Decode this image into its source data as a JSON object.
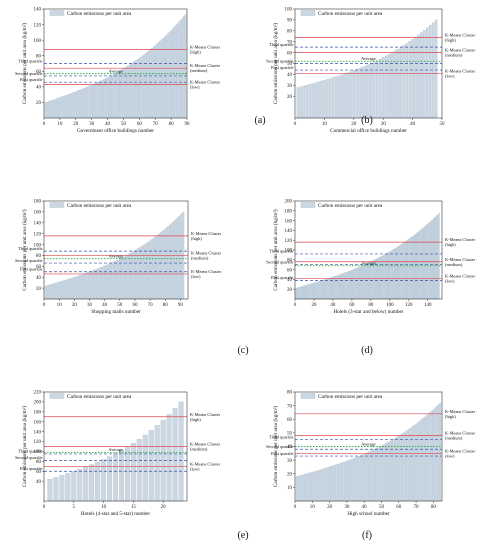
{
  "legend_label": "Carbon emissions per unit area",
  "colors": {
    "bar": "#cbd8e3",
    "bar_edge": "#a8bccd",
    "kmeans_line": "#e0464f",
    "quartile_line": "#3a52a8",
    "average_line": "#27b045"
  },
  "chart_data": [
    {
      "type": "bar",
      "panel_label": "(a)",
      "xlabel": "Government office buildings number",
      "ylabel": "Carbon emissions per unit area (kg/m²)",
      "n": 89,
      "xlim": [
        0,
        90
      ],
      "ylim": [
        0,
        140
      ],
      "xticks": [
        0,
        10,
        20,
        30,
        40,
        50,
        60,
        70,
        80,
        90
      ],
      "yticks": [
        20,
        40,
        60,
        80,
        100,
        120,
        140
      ],
      "values_start": 20,
      "values_end": 133,
      "lines": {
        "kmeans_high": 88,
        "third_quartile": 70,
        "kmeans_medium": 64,
        "average": 57,
        "second_quartile": 54,
        "first_quartile": 46,
        "kmeans_low": 43
      },
      "labels": {
        "kmeans_high": [
          "K-Means Cluster",
          "(high)"
        ],
        "kmeans_medium": [
          "K-Means Cluster",
          "(medium)"
        ],
        "kmeans_low": [
          "K-Means Cluster",
          "(low)"
        ],
        "third_quartile": "Third quartile",
        "second_quartile": "Second quartile",
        "first_quartile": "First quartile",
        "average": "Average"
      }
    },
    {
      "type": "bar",
      "panel_label": "(b)",
      "xlabel": "Commercial office buildings number",
      "ylabel": "Carbon emissions per unit area (kg/m²)",
      "n": 48,
      "xlim": [
        0,
        50
      ],
      "ylim": [
        0,
        100
      ],
      "xticks": [
        0,
        10,
        20,
        30,
        40,
        50
      ],
      "yticks": [
        20,
        30,
        40,
        50,
        60,
        70,
        80,
        90,
        100
      ],
      "values_start": 28,
      "values_end": 90,
      "lines": {
        "kmeans_high": 74,
        "third_quartile": 65,
        "kmeans_medium": 60,
        "average": 52,
        "second_quartile": 50,
        "first_quartile": 44,
        "kmeans_low": 41
      },
      "labels": {
        "kmeans_high": [
          "K-Means Cluster",
          "(high)"
        ],
        "kmeans_medium": [
          "K-Means Cluster",
          "(medium)"
        ],
        "kmeans_low": [
          "K-Means Cluster",
          "(low)"
        ],
        "third_quartile": "Third quartile",
        "second_quartile": "Second quartile",
        "first_quartile": "First quartile",
        "average": "Average"
      }
    },
    {
      "type": "bar",
      "panel_label": "(c)",
      "xlabel": "Shopping malls number",
      "ylabel": "Carbon emissions per unit area (kg/m²)",
      "n": 92,
      "xlim": [
        0,
        95
      ],
      "ylim": [
        0,
        180
      ],
      "xticks": [
        0,
        10,
        20,
        30,
        40,
        50,
        60,
        70,
        80,
        90
      ],
      "yticks": [
        20,
        40,
        60,
        80,
        100,
        120,
        140,
        160,
        180
      ],
      "values_start": 24,
      "values_end": 160,
      "lines": {
        "kmeans_high": 116,
        "third_quartile": 88,
        "kmeans_medium": 80,
        "average": 74,
        "second_quartile": 66,
        "first_quartile": 50,
        "kmeans_low": 46
      },
      "labels": {
        "kmeans_high": [
          "K-Means Cluster",
          "(high)"
        ],
        "kmeans_medium": [
          "K-Means Cluster",
          "(medium)"
        ],
        "kmeans_low": [
          "K-Means Cluster",
          "(low)"
        ],
        "third_quartile": "Third quartile",
        "second_quartile": "Second quartile",
        "first_quartile": "First quartile",
        "average": "Average"
      }
    },
    {
      "type": "bar",
      "panel_label": "(d)",
      "xlabel": "Hotels (3-star and below) number",
      "ylabel": "Carbon emissions per unit area (kg/m²)",
      "n": 152,
      "xlim": [
        0,
        155
      ],
      "ylim": [
        0,
        200
      ],
      "xticks": [
        0,
        20,
        40,
        60,
        80,
        100,
        120,
        140
      ],
      "yticks": [
        20,
        40,
        60,
        80,
        100,
        120,
        140,
        160,
        180,
        200
      ],
      "values_start": 22,
      "values_end": 175,
      "lines": {
        "kmeans_high": 116,
        "third_quartile": 92,
        "kmeans_medium": 76,
        "second_quartile": 70,
        "average": 68,
        "kmeans_low": 42,
        "first_quartile": 38
      },
      "labels": {
        "kmeans_high": [
          "K-Means Cluster",
          "(high)"
        ],
        "kmeans_medium": [
          "K-Means Cluster",
          "(medium)"
        ],
        "kmeans_low": [
          "K-Means Cluster",
          "(low)"
        ],
        "third_quartile": "Third quartile",
        "second_quartile": "Second quartile",
        "first_quartile": "First quartile",
        "average": "Average"
      }
    },
    {
      "type": "bar",
      "panel_label": "(e)",
      "xlabel": "Hotels (4-star and 5-star) number",
      "ylabel": "Carbon emissions per unit area (kg/m²)",
      "n": 23,
      "xlim": [
        0,
        24
      ],
      "ylim": [
        0,
        220
      ],
      "xticks": [
        0,
        5,
        10,
        15,
        20
      ],
      "yticks": [
        40,
        60,
        80,
        100,
        120,
        140,
        160,
        180,
        200,
        220
      ],
      "values_start": 44,
      "values_end": 200,
      "lines": {
        "kmeans_high": 170,
        "kmeans_medium": 110,
        "average": 98,
        "third_quartile": 95,
        "second_quartile": 82,
        "kmeans_low": 70,
        "first_quartile": 60
      },
      "labels": {
        "kmeans_high": [
          "K-Means Cluster",
          "(high)"
        ],
        "kmeans_medium": [
          "K-Means Cluster",
          "(medium)"
        ],
        "kmeans_low": [
          "K-Means Cluster",
          "(low)"
        ],
        "third_quartile": "Third quartile",
        "second_quartile": "Second quartile",
        "first_quartile": "First quartile",
        "average": "Average"
      }
    },
    {
      "type": "bar",
      "panel_label": "(f)",
      "xlabel": "High school number",
      "ylabel": "Carbon emissions per unit area (kg/m²)",
      "n": 84,
      "xlim": [
        0,
        85
      ],
      "ylim": [
        0,
        80
      ],
      "xticks": [
        0,
        10,
        20,
        30,
        40,
        50,
        60,
        70,
        80
      ],
      "yticks": [
        10,
        20,
        30,
        40,
        50,
        60,
        70,
        80
      ],
      "values_start": 18,
      "values_end": 72,
      "lines": {
        "kmeans_high": 64,
        "kmeans_medium": 48,
        "third_quartile": 45,
        "average": 40,
        "second_quartile": 38,
        "kmeans_low": 35,
        "first_quartile": 33
      },
      "labels": {
        "kmeans_high": [
          "K-Means Cluster",
          "(high)"
        ],
        "kmeans_medium": [
          "K-Means Cluster",
          "(medium)"
        ],
        "kmeans_low": [
          "K-Means Cluster",
          "(low)"
        ],
        "third_quartile": "Third quartile",
        "second_quartile": "Second quartile",
        "first_quartile": "First quartile",
        "average": "Average"
      }
    }
  ]
}
